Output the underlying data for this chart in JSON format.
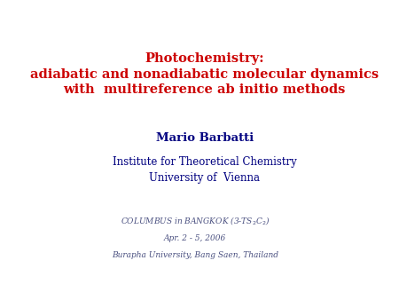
{
  "background_color": "#ffffff",
  "title_lines": [
    "Photochemistry:",
    "adiabatic and nonadiabatic molecular dynamics",
    "with  multireference ab initio methods"
  ],
  "title_color": "#cc0000",
  "title_fontsize": 10.5,
  "author": "Mario Barbatti",
  "author_color": "#000080",
  "author_fontsize": 9.5,
  "institute_lines": [
    "Institute for Theoretical Chemistry",
    "University of  Vienna"
  ],
  "institute_color": "#000080",
  "institute_fontsize": 8.5,
  "footer_line1": "COLUMBUS in BANGKOK (3-TS$_2$C$_2$)",
  "footer_line2": "Apr. 2 - 5, 2006",
  "footer_line3": "Burapha University, Bang Saen, Thailand",
  "footer_color": "#4a5080",
  "footer_fontsize": 6.5
}
